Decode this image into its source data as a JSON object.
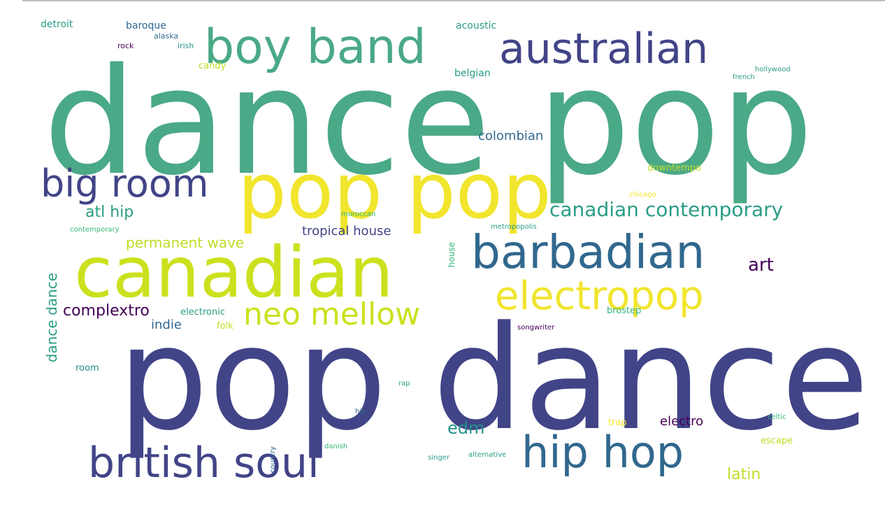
{
  "colors": {
    "background": "#ffffff",
    "purple": "#440154",
    "indigo": "#3b528b",
    "navy": "#414487",
    "blue": "#31688e",
    "teal": "#21918c",
    "teal_green": "#2a9d85",
    "green": "#4aa986",
    "mint": "#35b779",
    "lime": "#bddf26",
    "yellow": "#f1e52d",
    "yellow_green": "#cbe11e"
  },
  "words": {
    "dance_pop": "dance pop",
    "pop_dance": "pop dance",
    "pop_pop": "pop pop",
    "canadian": "canadian",
    "boy_band": "boy band",
    "australian": "australian",
    "big_room": "big room",
    "barbadian": "barbadian",
    "electropop": "electropop",
    "british_soul": "british soul",
    "hip_hop": "hip hop",
    "neo_mellow": "neo mellow",
    "canadian_contemporary": "canadian contemporary",
    "atl_hip": "atl hip",
    "permanent_wave": "permanent wave",
    "tropical_house": "tropical house",
    "art": "art",
    "complextro": "complextro",
    "edm": "edm",
    "electro": "electro",
    "latin": "latin",
    "colombian": "colombian",
    "indie": "indie",
    "dance_dance": "dance dance",
    "detroit": "detroit",
    "baroque": "baroque",
    "alaska": "alaska",
    "rock": "rock",
    "irish": "irish",
    "candy": "candy",
    "acoustic": "acoustic",
    "belgian": "belgian",
    "hollywood": "hollywood",
    "french": "french",
    "downtempo": "downtempo",
    "chicago": "chicago",
    "moroccan": "moroccan",
    "metropopolis": "metropopolis",
    "contemporary": "contemporary",
    "house": "house",
    "electronic": "electronic",
    "folk": "folk",
    "brostep": "brostep",
    "songwriter": "songwriter",
    "room": "room",
    "rap": "rap",
    "hip": "hip",
    "trap": "trap",
    "celtic": "celtic",
    "escape": "escape",
    "danish": "danish",
    "country": "country",
    "singer": "singer",
    "alternative": "alternative"
  }
}
